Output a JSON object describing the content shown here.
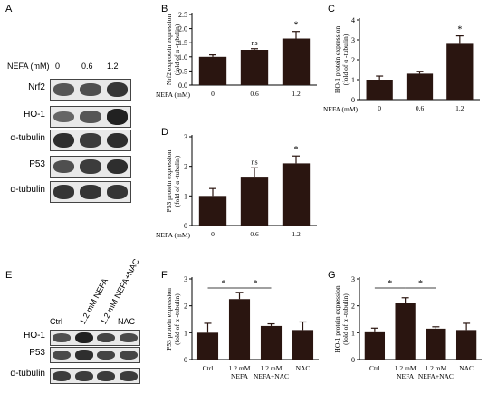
{
  "panel_letters": {
    "A": "A",
    "B": "B",
    "C": "C",
    "D": "D",
    "E": "E",
    "F": "F",
    "G": "G"
  },
  "panel_a": {
    "nefa_label": "NEFA (mM)",
    "conditions": [
      "0",
      "0.6",
      "1.2"
    ],
    "rows": [
      {
        "label": "Nrf2",
        "intensity": [
          0.55,
          0.6,
          0.8
        ]
      },
      {
        "label": "HO-1",
        "intensity": [
          0.45,
          0.55,
          0.95
        ]
      },
      {
        "label": "α-tubulin",
        "intensity": [
          0.85,
          0.75,
          0.85
        ]
      },
      {
        "label": "P53",
        "intensity": [
          0.6,
          0.75,
          0.85
        ]
      },
      {
        "label": "α-tubulin",
        "intensity": [
          0.8,
          0.8,
          0.8
        ]
      }
    ]
  },
  "panel_e": {
    "conditions": [
      "Ctrl",
      "1.2 mM NEFA",
      "1.2 mM NEFA+NAC",
      "NAC"
    ],
    "rows": [
      {
        "label": "HO-1",
        "intensity": [
          0.6,
          0.95,
          0.7,
          0.65
        ]
      },
      {
        "label": "P53",
        "intensity": [
          0.65,
          0.85,
          0.7,
          0.7
        ]
      },
      {
        "label": "α-tubulin",
        "intensity": [
          0.75,
          0.75,
          0.75,
          0.75
        ]
      }
    ]
  },
  "chart_data": [
    {
      "id": "B",
      "type": "bar",
      "ylabel": "Nrf2 exprotein expression (fold of α -tubulin)",
      "xprefix": "NEFA (mM)",
      "categories": [
        "0",
        "0.6",
        "1.2"
      ],
      "values": [
        1.0,
        1.25,
        1.65
      ],
      "errors": [
        0.07,
        0.04,
        0.25
      ],
      "annotations": [
        "",
        "ns",
        "*"
      ],
      "ylim": [
        0,
        2.5
      ],
      "yticks": [
        0.0,
        0.5,
        1.0,
        1.5,
        2.0,
        2.5
      ],
      "yticklabels": [
        "0.0",
        "0.5",
        "1.0",
        "1.5",
        "2.0",
        "2.5"
      ],
      "bar_color": "#2a1510"
    },
    {
      "id": "C",
      "type": "bar",
      "ylabel": "HO-1 protein expression (fold of α -tubulin)",
      "xprefix": "NEFA (mM)",
      "categories": [
        "0",
        "0.6",
        "1.2"
      ],
      "values": [
        1.0,
        1.3,
        2.8
      ],
      "errors": [
        0.18,
        0.12,
        0.4
      ],
      "annotations": [
        "",
        "",
        "*"
      ],
      "ylim": [
        0,
        4
      ],
      "yticks": [
        0,
        1,
        2,
        3,
        4
      ],
      "yticklabels": [
        "0",
        "1",
        "2",
        "3",
        "4"
      ],
      "bar_color": "#2a1510"
    },
    {
      "id": "D",
      "type": "bar",
      "ylabel": "P53 protein expression (fold of α -tubulin)",
      "xprefix": "NEFA (mM)",
      "categories": [
        "0",
        "0.6",
        "1.2"
      ],
      "values": [
        1.0,
        1.65,
        2.1
      ],
      "errors": [
        0.25,
        0.3,
        0.25
      ],
      "annotations": [
        "",
        "ns",
        "*"
      ],
      "ylim": [
        0,
        3
      ],
      "yticks": [
        0,
        1,
        2,
        3
      ],
      "yticklabels": [
        "0",
        "1",
        "2",
        "3"
      ],
      "bar_color": "#2a1510"
    },
    {
      "id": "F",
      "type": "bar",
      "ylabel": "P53 protein expression (fold of α -tubulin)",
      "xprefix": "",
      "categories": [
        "Ctrl",
        "1.2 mM NEFA",
        "1.2 mM NEFA+NAC",
        "NAC"
      ],
      "category_lines": [
        [
          "Ctrl"
        ],
        [
          "1.2 mM",
          "NEFA"
        ],
        [
          "1.2 mM",
          "NEFA+NAC"
        ],
        [
          "NAC"
        ]
      ],
      "values": [
        1.0,
        2.25,
        1.25,
        1.1
      ],
      "errors": [
        0.35,
        0.25,
        0.08,
        0.3
      ],
      "annotations": [
        "",
        "",
        "",
        ""
      ],
      "brackets": [
        {
          "from": 0,
          "to": 1,
          "label": "*"
        },
        {
          "from": 1,
          "to": 2,
          "label": "*"
        }
      ],
      "ylim": [
        0,
        3
      ],
      "yticks": [
        0,
        1,
        2,
        3
      ],
      "yticklabels": [
        "0",
        "1",
        "2",
        "3"
      ],
      "bar_color": "#2a1510"
    },
    {
      "id": "G",
      "type": "bar",
      "ylabel": "HO-1 protein expression (fold of α -tubulin)",
      "xprefix": "",
      "categories": [
        "Ctrl",
        "1.2 mM NEFA",
        "1.2 mM NEFA+NAC",
        "NAC"
      ],
      "category_lines": [
        [
          "Ctrl"
        ],
        [
          "1.2 mM",
          "NEFA"
        ],
        [
          "1.2 mM",
          "NEFA+NAC"
        ],
        [
          "NAC"
        ]
      ],
      "values": [
        1.05,
        2.1,
        1.15,
        1.1
      ],
      "errors": [
        0.12,
        0.2,
        0.07,
        0.25
      ],
      "annotations": [
        "",
        "",
        "",
        ""
      ],
      "brackets": [
        {
          "from": 0,
          "to": 1,
          "label": "*"
        },
        {
          "from": 1,
          "to": 2,
          "label": "*"
        }
      ],
      "ylim": [
        0,
        3
      ],
      "yticks": [
        0,
        1,
        2,
        3
      ],
      "yticklabels": [
        "0",
        "1",
        "2",
        "3"
      ],
      "bar_color": "#2a1510"
    }
  ]
}
